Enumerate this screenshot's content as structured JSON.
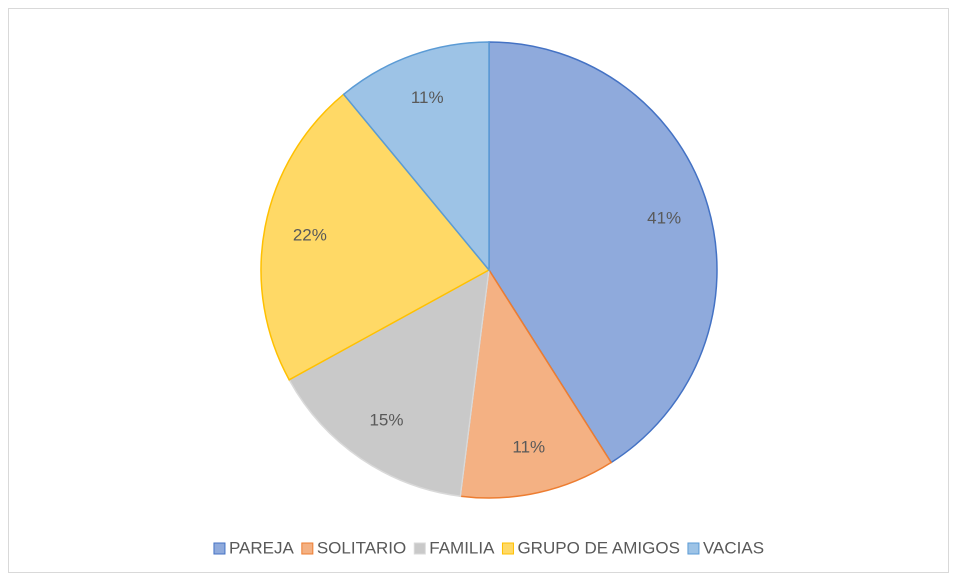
{
  "chart_data": {
    "type": "pie",
    "categories": [
      "PAREJA",
      "SOLITARIO",
      "FAMILIA",
      "GRUPO DE AMIGOS",
      "VACIAS"
    ],
    "values": [
      41,
      11,
      15,
      22,
      11
    ],
    "value_labels": [
      "41%",
      "11%",
      "15%",
      "22%",
      "11%"
    ],
    "colors": [
      "#8faadc",
      "#f4b183",
      "#c9c9c9",
      "#ffd966",
      "#9dc3e6"
    ],
    "edge_colors": [
      "#4472c4",
      "#ed7d31",
      "#d9d9d9",
      "#ffc000",
      "#5b9bd5"
    ],
    "legend": "bottom"
  }
}
